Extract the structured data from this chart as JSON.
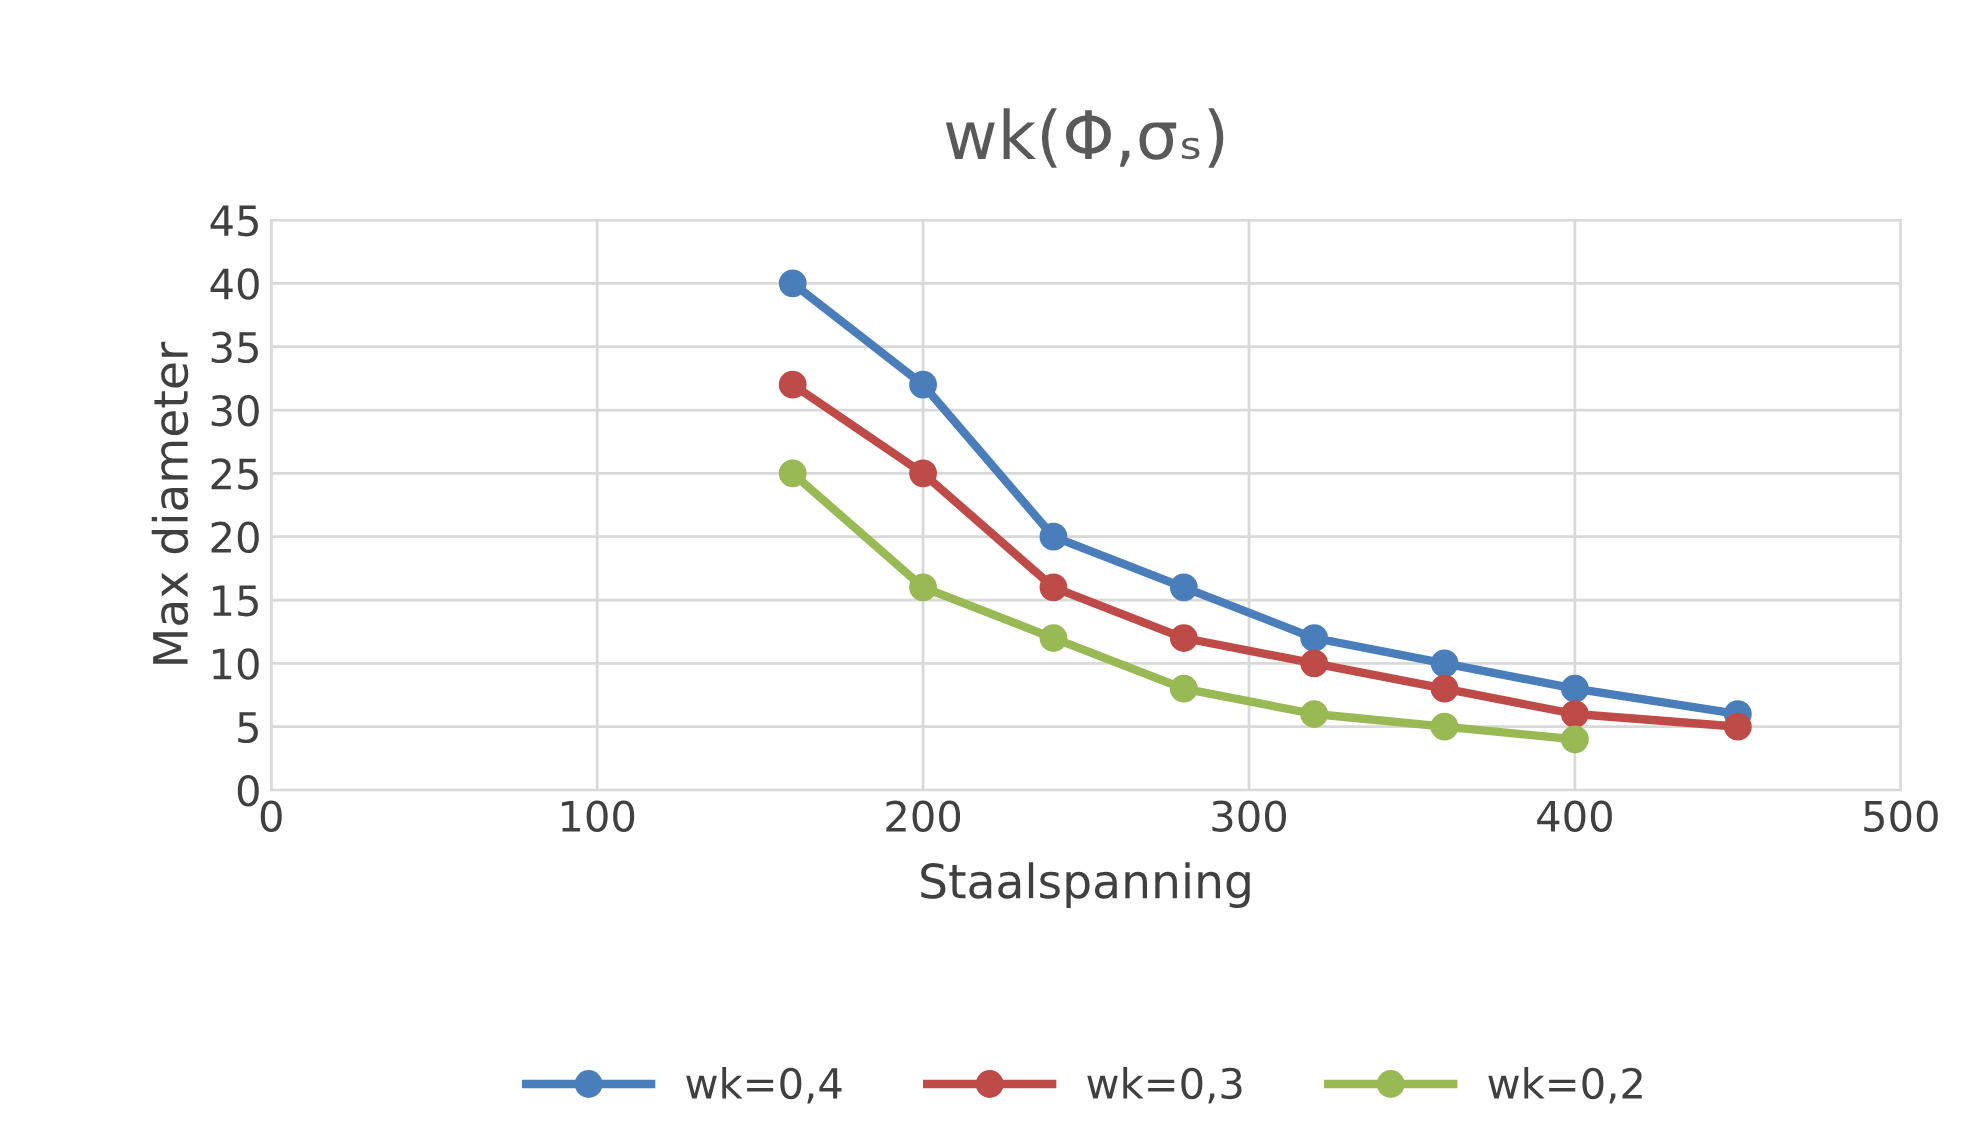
{
  "chart_data": {
    "type": "line",
    "title": "wk(Φ,σₛ)",
    "xlabel": "Staalspanning",
    "ylabel": "Max diameter",
    "series": [
      {
        "name": "wk=0,4",
        "color": "#4a7ebb",
        "x": [
          160,
          200,
          240,
          280,
          320,
          360,
          400,
          450
        ],
        "values": [
          40,
          32,
          20,
          16,
          12,
          10,
          8,
          6
        ]
      },
      {
        "name": "wk=0,3",
        "color": "#be4b48",
        "x": [
          160,
          200,
          240,
          280,
          320,
          360,
          400,
          450
        ],
        "values": [
          32,
          25,
          16,
          12,
          10,
          8,
          6,
          5
        ]
      },
      {
        "name": "wk=0,2",
        "color": "#98b954",
        "x": [
          160,
          200,
          240,
          280,
          320,
          360,
          400
        ],
        "values": [
          25,
          16,
          12,
          8,
          6,
          5,
          4
        ]
      }
    ],
    "xlim": [
      0,
      500
    ],
    "xticks": [
      0,
      100,
      200,
      300,
      400,
      500
    ],
    "ylim": [
      0,
      45
    ],
    "yticks": [
      0,
      5,
      10,
      15,
      20,
      25,
      30,
      35,
      40,
      45
    ],
    "grid": true,
    "legend": "bottom",
    "marker": "circle",
    "line_style": "solid"
  }
}
